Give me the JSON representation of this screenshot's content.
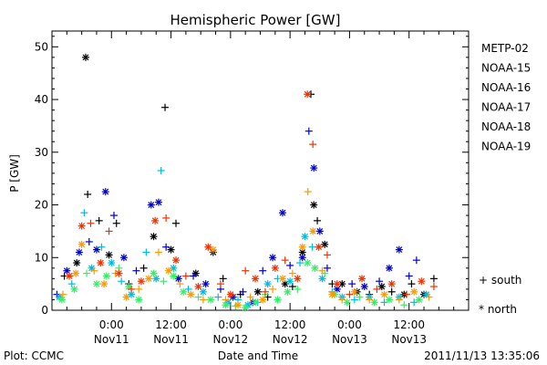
{
  "chart_data": {
    "type": "scatter",
    "title": "Hemispheric Power [GW]",
    "xlabel": "Date and Time",
    "ylabel": "P [GW]",
    "ylim": [
      0,
      53
    ],
    "xlim_hours": [
      0,
      84
    ],
    "yticks": [
      "0",
      "10",
      "20",
      "30",
      "40",
      "50"
    ],
    "xticks": [
      {
        "hour": 12,
        "time": "0:00",
        "date": "Nov11"
      },
      {
        "hour": 24,
        "time": "12:00",
        "date": "Nov11"
      },
      {
        "hour": 36,
        "time": "0:00",
        "date": "Nov12"
      },
      {
        "hour": 48,
        "time": "12:00",
        "date": "Nov12"
      },
      {
        "hour": 60,
        "time": "0:00",
        "date": "Nov13"
      },
      {
        "hour": 72,
        "time": "12:00",
        "date": "Nov13"
      }
    ],
    "marker_legend": {
      "south": "+ south",
      "north": "* north"
    },
    "footer_left": "Plot: CCMC",
    "footer_right": "2011/11/13 13:35:06",
    "series": [
      {
        "name": "METP-02",
        "color": "#000000",
        "points": [
          [
            2.5,
            6.5,
            "+"
          ],
          [
            5.0,
            9.0,
            "*"
          ],
          [
            6.8,
            48.0,
            "*"
          ],
          [
            7.2,
            22.0,
            "+"
          ],
          [
            9.5,
            17.0,
            "+"
          ],
          [
            11.5,
            10.5,
            "*"
          ],
          [
            13.0,
            16.5,
            "+"
          ],
          [
            15.5,
            5.0,
            "+"
          ],
          [
            18.5,
            8.0,
            "+"
          ],
          [
            20.5,
            14.0,
            "*"
          ],
          [
            22.8,
            38.5,
            "+"
          ],
          [
            24.0,
            11.5,
            "*"
          ],
          [
            25.0,
            16.5,
            "+"
          ],
          [
            29.0,
            7.0,
            "*"
          ],
          [
            32.5,
            11.0,
            "*"
          ],
          [
            34.5,
            6.0,
            "+"
          ],
          [
            38.0,
            3.0,
            "+"
          ],
          [
            41.5,
            3.5,
            "*"
          ],
          [
            43.5,
            2.5,
            "+"
          ],
          [
            47.0,
            5.0,
            "*"
          ],
          [
            48.5,
            4.5,
            "+"
          ],
          [
            50.5,
            11.0,
            "*"
          ],
          [
            52.2,
            41.0,
            "+"
          ],
          [
            52.8,
            20.0,
            "*"
          ],
          [
            53.5,
            17.0,
            "+"
          ],
          [
            55.0,
            12.5,
            "*"
          ],
          [
            56.5,
            5.0,
            "+"
          ],
          [
            58.5,
            5.0,
            "*"
          ],
          [
            61.5,
            3.5,
            "*"
          ],
          [
            64.0,
            3.0,
            "+"
          ],
          [
            66.5,
            4.5,
            "*"
          ],
          [
            68.5,
            3.5,
            "+"
          ],
          [
            71.0,
            3.0,
            "*"
          ],
          [
            72.5,
            5.0,
            "+"
          ],
          [
            75.0,
            3.0,
            "*"
          ],
          [
            77.0,
            6.0,
            "+"
          ]
        ]
      },
      {
        "name": "NOAA-15",
        "color": "#0000cc",
        "points": [
          [
            1.0,
            3.0,
            "+"
          ],
          [
            3.0,
            7.5,
            "*"
          ],
          [
            5.5,
            11.0,
            "*"
          ],
          [
            7.5,
            13.0,
            "+"
          ],
          [
            9.0,
            11.5,
            "*"
          ],
          [
            10.8,
            22.5,
            "*"
          ],
          [
            12.5,
            18.0,
            "+"
          ],
          [
            14.5,
            10.0,
            "*"
          ],
          [
            17.0,
            7.5,
            "+"
          ],
          [
            20.0,
            20.0,
            "*"
          ],
          [
            21.5,
            20.5,
            "*"
          ],
          [
            23.0,
            12.0,
            "+"
          ],
          [
            25.5,
            6.0,
            "*"
          ],
          [
            28.5,
            6.5,
            "+"
          ],
          [
            31.0,
            5.0,
            "*"
          ],
          [
            34.0,
            4.0,
            "+"
          ],
          [
            36.5,
            2.5,
            "*"
          ],
          [
            38.5,
            3.5,
            "+"
          ],
          [
            40.5,
            1.5,
            "*"
          ],
          [
            42.5,
            7.5,
            "+"
          ],
          [
            44.5,
            10.0,
            "*"
          ],
          [
            46.5,
            18.5,
            "*"
          ],
          [
            48.0,
            8.5,
            "+"
          ],
          [
            50.5,
            10.0,
            "*"
          ],
          [
            51.8,
            34.0,
            "+"
          ],
          [
            52.8,
            27.0,
            "*"
          ],
          [
            54.0,
            15.0,
            "*"
          ],
          [
            55.5,
            8.0,
            "+"
          ],
          [
            57.5,
            4.0,
            "*"
          ],
          [
            60.5,
            5.0,
            "+"
          ],
          [
            63.0,
            4.5,
            "*"
          ],
          [
            66.0,
            5.5,
            "+"
          ],
          [
            68.0,
            8.0,
            "*"
          ],
          [
            70.0,
            11.5,
            "*"
          ],
          [
            72.0,
            6.5,
            "+"
          ],
          [
            73.5,
            9.5,
            "+"
          ]
        ]
      },
      {
        "name": "NOAA-16",
        "color": "#00bbdd",
        "points": [
          [
            1.5,
            2.5,
            "*"
          ],
          [
            4.0,
            5.0,
            "+"
          ],
          [
            6.5,
            18.5,
            "+"
          ],
          [
            8.0,
            8.0,
            "*"
          ],
          [
            10.0,
            12.0,
            "+"
          ],
          [
            12.0,
            9.0,
            "*"
          ],
          [
            14.0,
            5.5,
            "+"
          ],
          [
            16.0,
            3.0,
            "*"
          ],
          [
            19.0,
            11.0,
            "+"
          ],
          [
            21.0,
            6.0,
            "*"
          ],
          [
            22.0,
            26.5,
            "+"
          ],
          [
            24.5,
            8.0,
            "*"
          ],
          [
            27.5,
            4.0,
            "+"
          ],
          [
            30.5,
            3.5,
            "*"
          ],
          [
            33.5,
            2.5,
            "+"
          ],
          [
            35.5,
            1.5,
            "*"
          ],
          [
            37.5,
            2.0,
            "+"
          ],
          [
            39.5,
            1.0,
            "*"
          ],
          [
            41.5,
            1.5,
            "+"
          ],
          [
            43.5,
            5.0,
            "*"
          ],
          [
            45.5,
            6.0,
            "+"
          ],
          [
            48.0,
            5.5,
            "*"
          ],
          [
            50.0,
            9.0,
            "+"
          ],
          [
            51.0,
            14.0,
            "*"
          ],
          [
            52.5,
            12.0,
            "+"
          ],
          [
            54.5,
            6.0,
            "*"
          ],
          [
            56.5,
            3.5,
            "+"
          ],
          [
            58.5,
            2.5,
            "*"
          ],
          [
            61.0,
            2.0,
            "+"
          ],
          [
            64.0,
            2.5,
            "*"
          ],
          [
            67.0,
            1.5,
            "+"
          ],
          [
            70.0,
            2.5,
            "*"
          ],
          [
            73.0,
            1.5,
            "+"
          ],
          [
            75.5,
            3.0,
            "*"
          ]
        ]
      },
      {
        "name": "NOAA-17",
        "color": "#33ee66",
        "points": [
          [
            2.0,
            2.0,
            "*"
          ],
          [
            4.5,
            4.0,
            "*"
          ],
          [
            7.0,
            7.0,
            "+"
          ],
          [
            9.0,
            5.0,
            "*"
          ],
          [
            11.0,
            6.5,
            "*"
          ],
          [
            13.5,
            8.0,
            "+"
          ],
          [
            15.5,
            4.5,
            "*"
          ],
          [
            17.5,
            2.0,
            "*"
          ],
          [
            20.5,
            7.0,
            "*"
          ],
          [
            22.5,
            5.5,
            "+"
          ],
          [
            24.5,
            6.5,
            "*"
          ],
          [
            26.5,
            3.5,
            "*"
          ],
          [
            29.5,
            2.5,
            "+"
          ],
          [
            32.0,
            2.0,
            "*"
          ],
          [
            35.0,
            1.0,
            "*"
          ],
          [
            37.0,
            0.8,
            "+"
          ],
          [
            39.0,
            0.5,
            "*"
          ],
          [
            41.0,
            1.5,
            "*"
          ],
          [
            43.0,
            3.0,
            "+"
          ],
          [
            45.5,
            2.0,
            "*"
          ],
          [
            47.5,
            3.5,
            "*"
          ],
          [
            49.5,
            4.0,
            "+"
          ],
          [
            51.5,
            9.0,
            "*"
          ],
          [
            53.0,
            8.0,
            "*"
          ],
          [
            55.0,
            7.0,
            "+"
          ],
          [
            57.0,
            3.0,
            "*"
          ],
          [
            59.5,
            1.5,
            "*"
          ],
          [
            62.0,
            2.5,
            "+"
          ],
          [
            65.0,
            1.5,
            "*"
          ],
          [
            68.0,
            2.0,
            "*"
          ],
          [
            71.0,
            1.0,
            "+"
          ],
          [
            74.0,
            2.0,
            "*"
          ]
        ]
      },
      {
        "name": "NOAA-18",
        "color": "#ff9900",
        "points": [
          [
            2.2,
            3.0,
            "+"
          ],
          [
            4.8,
            7.0,
            "*"
          ],
          [
            6.0,
            12.5,
            "*"
          ],
          [
            8.5,
            7.5,
            "+"
          ],
          [
            10.5,
            5.0,
            "*"
          ],
          [
            12.8,
            7.0,
            "+"
          ],
          [
            15.0,
            2.5,
            "*"
          ],
          [
            17.5,
            4.0,
            "+"
          ],
          [
            19.5,
            6.0,
            "*"
          ],
          [
            21.5,
            11.0,
            "+"
          ],
          [
            23.5,
            7.5,
            "*"
          ],
          [
            25.8,
            5.0,
            "+"
          ],
          [
            28.0,
            3.0,
            "*"
          ],
          [
            30.5,
            2.0,
            "+"
          ],
          [
            32.5,
            11.5,
            "*"
          ],
          [
            35.0,
            2.0,
            "+"
          ],
          [
            37.5,
            1.0,
            "*"
          ],
          [
            40.0,
            2.5,
            "+"
          ],
          [
            42.5,
            2.0,
            "*"
          ],
          [
            44.5,
            4.0,
            "+"
          ],
          [
            46.5,
            6.0,
            "*"
          ],
          [
            48.5,
            7.0,
            "+"
          ],
          [
            50.5,
            12.0,
            "*"
          ],
          [
            51.6,
            22.5,
            "+"
          ],
          [
            52.6,
            15.0,
            "*"
          ],
          [
            54.5,
            7.5,
            "+"
          ],
          [
            56.5,
            3.0,
            "*"
          ],
          [
            58.5,
            2.0,
            "+"
          ],
          [
            61.0,
            3.5,
            "*"
          ],
          [
            64.0,
            2.0,
            "+"
          ],
          [
            67.0,
            3.0,
            "*"
          ],
          [
            70.0,
            2.0,
            "+"
          ],
          [
            73.0,
            3.5,
            "*"
          ],
          [
            76.0,
            2.5,
            "+"
          ]
        ]
      },
      {
        "name": "NOAA-19",
        "color": "#ee3300",
        "points": [
          [
            3.5,
            6.5,
            "*"
          ],
          [
            6.0,
            16.0,
            "*"
          ],
          [
            7.8,
            16.5,
            "+"
          ],
          [
            9.8,
            9.0,
            "*"
          ],
          [
            11.5,
            15.0,
            "+"
          ],
          [
            13.5,
            7.0,
            "*"
          ],
          [
            16.0,
            4.0,
            "+"
          ],
          [
            18.0,
            5.5,
            "*"
          ],
          [
            20.8,
            17.0,
            "*"
          ],
          [
            23.0,
            17.5,
            "+"
          ],
          [
            25.0,
            9.5,
            "*"
          ],
          [
            27.0,
            6.5,
            "+"
          ],
          [
            29.5,
            4.5,
            "*"
          ],
          [
            31.5,
            12.0,
            "*"
          ],
          [
            34.0,
            5.0,
            "+"
          ],
          [
            36.0,
            3.0,
            "*"
          ],
          [
            39.0,
            7.5,
            "+"
          ],
          [
            41.0,
            6.0,
            "*"
          ],
          [
            43.0,
            3.5,
            "+"
          ],
          [
            45.0,
            8.0,
            "*"
          ],
          [
            47.0,
            9.5,
            "+"
          ],
          [
            49.5,
            6.0,
            "*"
          ],
          [
            51.5,
            41.0,
            "*"
          ],
          [
            52.6,
            31.5,
            "+"
          ],
          [
            53.8,
            12.0,
            "*"
          ],
          [
            55.5,
            10.5,
            "+"
          ],
          [
            57.5,
            5.0,
            "*"
          ],
          [
            60.0,
            3.0,
            "+"
          ],
          [
            62.5,
            6.0,
            "*"
          ],
          [
            65.5,
            4.0,
            "+"
          ],
          [
            68.5,
            5.0,
            "*"
          ],
          [
            71.5,
            3.0,
            "+"
          ],
          [
            74.5,
            5.5,
            "*"
          ],
          [
            77.0,
            4.5,
            "+"
          ]
        ]
      }
    ]
  }
}
